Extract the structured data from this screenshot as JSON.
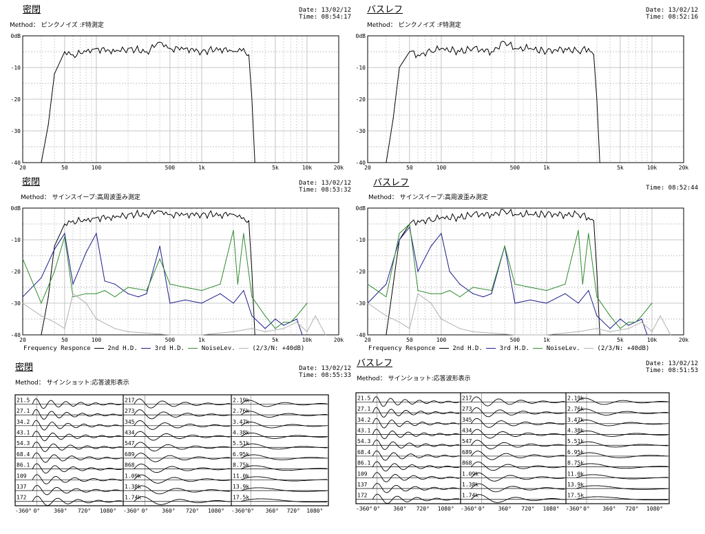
{
  "panels": [
    {
      "id": "tl",
      "title": "密閉",
      "method": "Method： ピンクノイズ :F特測定",
      "date": "Date: 13/02/12",
      "time": "Time: 08:54:17"
    },
    {
      "id": "tr",
      "title": "バスレフ",
      "method": "Method： ピンクノイズ :F特測定",
      "date": "Date: 13/02/12",
      "time": "Time: 08:52:16"
    },
    {
      "id": "ml",
      "title": "密閉",
      "method": "Method： サインスイープ:高周波歪み測定",
      "date": "Date: 13/02/12",
      "time": "Time: 08:53:32"
    },
    {
      "id": "mr",
      "title": "バスレフ",
      "method": "Method： サインスイープ:高周波歪み測定",
      "date": "",
      "time": "Time: 08:52:44"
    },
    {
      "id": "bl",
      "title": "密閉",
      "method": "Method： サインショット:応答波形表示",
      "date": "Date: 13/02/12",
      "time": "Time: 08:55:33"
    },
    {
      "id": "br",
      "title": "バスレフ",
      "method": "Method： サインショット:応答波形表示",
      "date": "Date: 13/02/12",
      "time": "Time: 08:51:53"
    }
  ],
  "legend": {
    "freq": "Frequency Responce",
    "h2": "2nd H.D.",
    "h3": "3rd H.D.",
    "noise": "NoiseLev.",
    "note": "(2/3/N: +40dB)"
  },
  "colors": {
    "fr": "#000000",
    "h2": "#1a1a8c",
    "h3": "#2e8b2e",
    "noise": "#b0b0b0",
    "grid": "#b4b4b4"
  },
  "chart_data": [
    {
      "type": "line",
      "panel": "tl",
      "xscale": "log",
      "xlim": [
        20,
        20000
      ],
      "ylim": [
        -40,
        0
      ],
      "xticks": [
        "20",
        "50",
        "100",
        "500",
        "1k",
        "5k",
        "10k",
        "20k"
      ],
      "yticks": [
        "0dB",
        "-10",
        "-20",
        "-30",
        "-40"
      ],
      "series": [
        {
          "x": [
            30,
            35,
            40,
            50,
            60,
            80,
            100,
            150,
            200,
            300,
            400,
            500,
            700,
            1000,
            1500,
            2000,
            2500,
            2800,
            3000,
            3200
          ],
          "y": [
            -40,
            -28,
            -12,
            -5,
            -6,
            -5,
            -4,
            -5,
            -4,
            -5,
            -2,
            -4,
            -4,
            -5,
            -4,
            -5,
            -4,
            -6,
            -20,
            -40
          ]
        }
      ]
    },
    {
      "type": "line",
      "panel": "tr",
      "xscale": "log",
      "xlim": [
        20,
        20000
      ],
      "ylim": [
        -40,
        0
      ],
      "xticks": [
        "20",
        "50",
        "100",
        "500",
        "1k",
        "5k",
        "10k",
        "20k"
      ],
      "yticks": [
        "0dB",
        "-10",
        "-20",
        "-30",
        "-40"
      ],
      "series": [
        {
          "x": [
            30,
            35,
            40,
            50,
            60,
            80,
            100,
            150,
            200,
            300,
            400,
            500,
            700,
            1000,
            1500,
            2000,
            2500,
            2800,
            3000,
            3200
          ],
          "y": [
            -40,
            -26,
            -10,
            -5,
            -6,
            -5,
            -4,
            -5,
            -4,
            -5,
            -2,
            -4,
            -4,
            -5,
            -4,
            -5,
            -4,
            -6,
            -20,
            -40
          ]
        }
      ]
    },
    {
      "type": "line",
      "panel": "ml",
      "xscale": "log",
      "xlim": [
        20,
        20000
      ],
      "ylim": [
        -40,
        0
      ],
      "xticks": [
        "20",
        "50",
        "100",
        "500",
        "1k",
        "5k",
        "10k",
        "20k"
      ],
      "yticks": [
        "0dB",
        "-10",
        "-20",
        "-30",
        "-40"
      ],
      "series": [
        {
          "name": "Frequency Responce",
          "x": [
            30,
            35,
            40,
            50,
            60,
            80,
            100,
            150,
            200,
            300,
            400,
            500,
            700,
            1000,
            1500,
            2000,
            2500,
            2800,
            3000,
            3200
          ],
          "y": [
            -40,
            -28,
            -12,
            -5,
            -4,
            -4,
            -3,
            -3,
            -2,
            -2,
            -1,
            -2,
            -2,
            -2,
            -2,
            -2,
            -3,
            -4,
            -20,
            -40
          ]
        },
        {
          "name": "2nd H.D.",
          "x": [
            20,
            30,
            40,
            50,
            60,
            80,
            100,
            120,
            150,
            200,
            250,
            300,
            400,
            500,
            700,
            1000,
            1500,
            2000,
            2500,
            3000,
            4000,
            5000,
            6000,
            8000,
            9000
          ],
          "y": [
            -28,
            -22,
            -13,
            -8,
            -24,
            -14,
            -8,
            -23,
            -24,
            -27,
            -28,
            -27,
            -12,
            -30,
            -29,
            -30,
            -27,
            -30,
            -26,
            -34,
            -38,
            -35,
            -37,
            -35,
            -40
          ]
        },
        {
          "name": "3rd H.D.",
          "x": [
            20,
            30,
            40,
            50,
            60,
            80,
            100,
            120,
            150,
            200,
            300,
            400,
            500,
            700,
            1000,
            1500,
            2000,
            2200,
            2500,
            3000,
            4000,
            5000,
            6000,
            7000,
            8000,
            10000
          ],
          "y": [
            -16,
            -30,
            -20,
            -9,
            -28,
            -27,
            -27,
            -26,
            -28,
            -25,
            -26,
            -16,
            -24,
            -25,
            -26,
            -24,
            -7,
            -24,
            -8,
            -28,
            -34,
            -38,
            -36,
            -36,
            -34,
            -30
          ]
        },
        {
          "name": "NoiseLev.",
          "x": [
            20,
            30,
            40,
            50,
            60,
            80,
            100,
            150,
            200,
            500,
            1000,
            2000,
            3000,
            4000,
            6000,
            8000,
            10000,
            12000,
            15000
          ],
          "y": [
            -30,
            -34,
            -36,
            -38,
            -27,
            -30,
            -35,
            -38,
            -39,
            -40,
            -40,
            -39,
            -38,
            -39,
            -38,
            -36,
            -39,
            -34,
            -40
          ]
        }
      ]
    },
    {
      "type": "line",
      "panel": "mr",
      "xscale": "log",
      "xlim": [
        20,
        20000
      ],
      "ylim": [
        -40,
        0
      ],
      "xticks": [
        "20",
        "50",
        "100",
        "500",
        "1k",
        "5k",
        "10k",
        "20k"
      ],
      "yticks": [
        "0dB",
        "-10",
        "-20",
        "-30",
        "-40"
      ],
      "series": [
        {
          "name": "Frequency Responce",
          "x": [
            30,
            35,
            40,
            50,
            60,
            80,
            100,
            150,
            200,
            300,
            400,
            500,
            700,
            1000,
            1500,
            2000,
            2500,
            2800,
            3000,
            3200
          ],
          "y": [
            -40,
            -24,
            -10,
            -5,
            -4,
            -4,
            -3,
            -3,
            -2,
            -2,
            -1,
            -2,
            -2,
            -2,
            -2,
            -2,
            -3,
            -4,
            -20,
            -40
          ]
        },
        {
          "name": "2nd H.D.",
          "x": [
            20,
            30,
            40,
            50,
            60,
            80,
            100,
            120,
            150,
            200,
            250,
            300,
            400,
            500,
            700,
            1000,
            1500,
            2000,
            2500,
            3000,
            4000,
            5000,
            6000,
            8000,
            9000
          ],
          "y": [
            -30,
            -24,
            -10,
            -6,
            -20,
            -12,
            -8,
            -20,
            -24,
            -27,
            -28,
            -27,
            -12,
            -30,
            -29,
            -30,
            -27,
            -30,
            -26,
            -34,
            -38,
            -35,
            -37,
            -35,
            -40
          ]
        },
        {
          "name": "3rd H.D.",
          "x": [
            20,
            30,
            40,
            50,
            60,
            80,
            100,
            120,
            150,
            200,
            300,
            400,
            500,
            700,
            1000,
            1500,
            2000,
            2200,
            2500,
            3000,
            4000,
            5000,
            6000,
            7000,
            8000,
            10000
          ],
          "y": [
            -24,
            -28,
            -8,
            -5,
            -26,
            -27,
            -27,
            -26,
            -28,
            -25,
            -26,
            -12,
            -24,
            -25,
            -26,
            -24,
            -7,
            -24,
            -8,
            -28,
            -34,
            -38,
            -36,
            -36,
            -34,
            -30
          ]
        },
        {
          "name": "NoiseLev.",
          "x": [
            20,
            30,
            40,
            50,
            60,
            80,
            100,
            150,
            200,
            500,
            1000,
            2000,
            3000,
            4000,
            6000,
            8000,
            10000,
            12000,
            15000
          ],
          "y": [
            -30,
            -34,
            -36,
            -38,
            -27,
            -30,
            -35,
            -38,
            -39,
            -40,
            -40,
            -39,
            -38,
            -39,
            -38,
            -36,
            -39,
            -34,
            -40
          ]
        }
      ]
    },
    {
      "type": "line",
      "panel": "bl",
      "xlabels": [
        "-360°",
        "0°",
        "360°",
        "720°",
        "1080°"
      ],
      "columns": [
        [
          "21.5",
          "27.1",
          "34.2",
          "43.1",
          "54.3",
          "68.4",
          "86.1",
          "109",
          "137",
          "172"
        ],
        [
          "217",
          "273",
          "345",
          "434",
          "547",
          "689",
          "868",
          "1.09k",
          "1.38k",
          "1.74k"
        ],
        [
          "2.19k",
          "2.76k",
          "3.47k",
          "4.38k",
          "5.51k",
          "6.95k",
          "8.75k",
          "11.0k",
          "13.9k",
          "17.5k"
        ]
      ]
    },
    {
      "type": "line",
      "panel": "br",
      "xlabels": [
        "-360°",
        "0°",
        "360°",
        "720°",
        "1080°"
      ],
      "columns": [
        [
          "21.5",
          "27.1",
          "34.2",
          "43.1",
          "54.3",
          "68.4",
          "86.1",
          "109",
          "137",
          "172"
        ],
        [
          "217",
          "273",
          "345",
          "434",
          "547",
          "689",
          "868",
          "1.09k",
          "1.38k",
          "1.74k"
        ],
        [
          "2.19k",
          "2.76k",
          "3.47k",
          "4.38k",
          "5.51k",
          "6.95k",
          "8.75k",
          "11.0k",
          "13.9k",
          "17.5k"
        ]
      ]
    }
  ]
}
